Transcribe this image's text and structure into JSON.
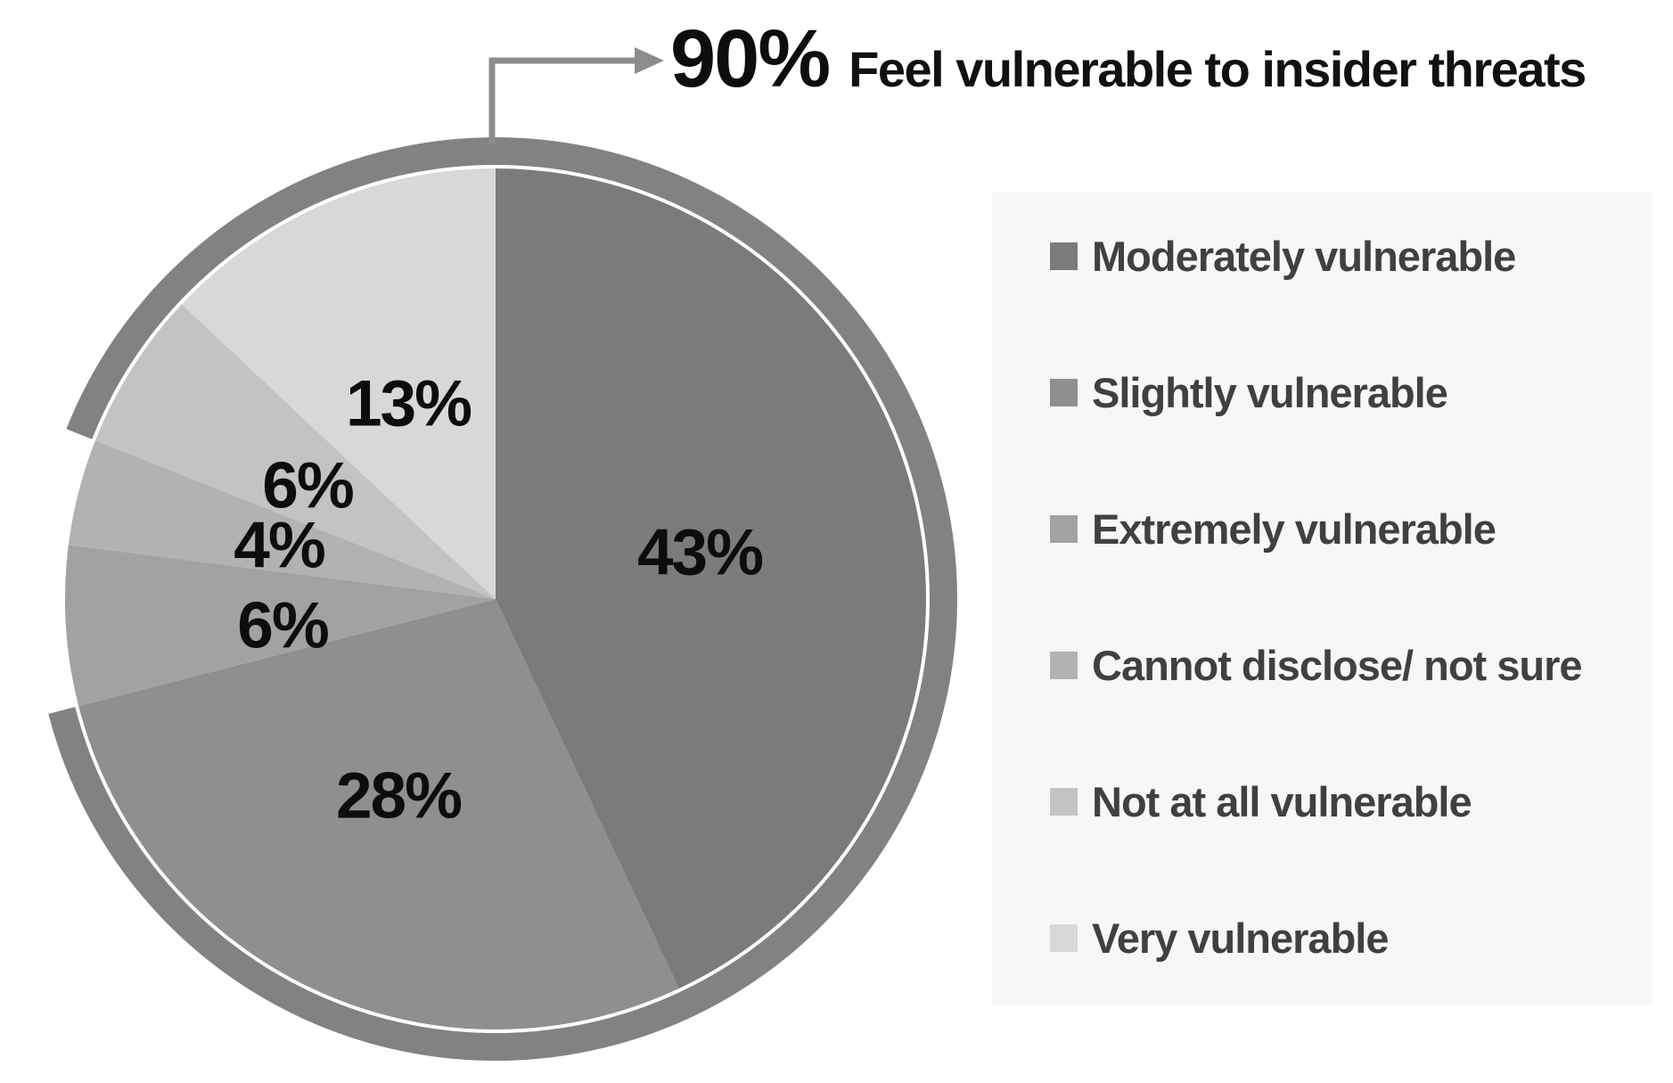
{
  "title": {
    "stat": "90%",
    "text": "Feel vulnerable to insider threats"
  },
  "chart_data": {
    "type": "pie",
    "title": "90% Feel vulnerable to insider threats",
    "start_angle_deg": 0,
    "direction": "clockwise",
    "legend_position": "right",
    "slices": [
      {
        "label": "Moderately vulnerable",
        "value": 43,
        "pct_label": "43%",
        "color": "#7b7b7b"
      },
      {
        "label": "Slightly vulnerable",
        "value": 28,
        "pct_label": "28%",
        "color": "#8f8f8f"
      },
      {
        "label": "Extremely vulnerable",
        "value": 6,
        "pct_label": "6%",
        "color": "#a2a2a2"
      },
      {
        "label": "Cannot disclose/ not sure",
        "value": 4,
        "pct_label": "4%",
        "color": "#b2b2b2"
      },
      {
        "label": "Not at all vulnerable",
        "value": 6,
        "pct_label": "6%",
        "color": "#c3c3c3"
      },
      {
        "label": "Very vulnerable",
        "value": 13,
        "pct_label": "13%",
        "color": "#d8d8d8"
      }
    ],
    "highlight_arc": {
      "label": "90%",
      "covers_pct": 90,
      "color": "#828282",
      "gap_from_deg": 255.6,
      "gap_to_deg": 291.6
    },
    "arrow_color": "#8c8c8c",
    "legend_background": "#f7f7f7"
  }
}
